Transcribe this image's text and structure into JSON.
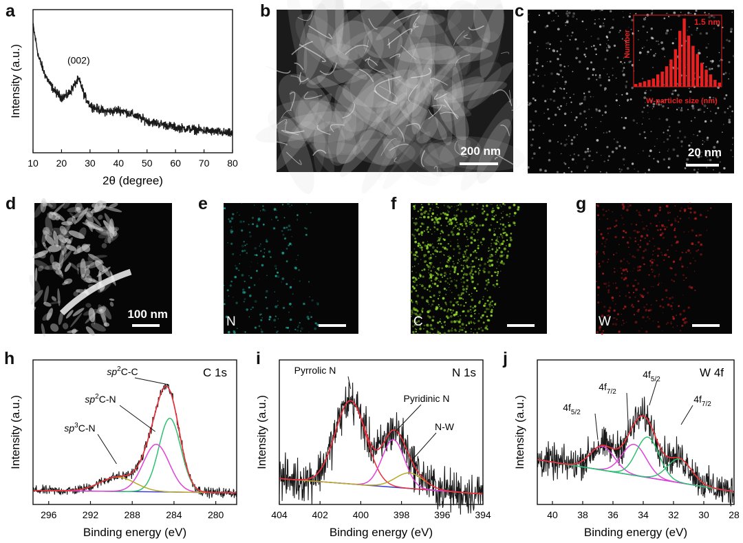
{
  "panels": {
    "a": {
      "letter": "a"
    },
    "b": {
      "letter": "b",
      "scalebar": "200 nm"
    },
    "c": {
      "letter": "c",
      "scalebar": "20 nm",
      "inset_ylabel": "Number",
      "inset_size": "1.5 nm",
      "inset_xlabel": "W-particle size (nm)"
    },
    "d": {
      "letter": "d",
      "scalebar": "100 nm"
    },
    "e": {
      "letter": "e",
      "element": "N"
    },
    "f": {
      "letter": "f",
      "element": "C"
    },
    "g": {
      "letter": "g",
      "element": "W"
    },
    "h": {
      "letter": "h"
    },
    "i": {
      "letter": "i"
    },
    "j": {
      "letter": "j"
    }
  },
  "colors": {
    "data": "#1a1a1a",
    "fit_envelope": "#e8303a",
    "component_green": "#2cc070",
    "component_magenta": "#e040d8",
    "component_olive": "#b8a826",
    "background": "#3a3ad8",
    "edx_N": "#22c8b4",
    "edx_C": "#8ed82a",
    "edx_W": "#c82020",
    "inset_red": "#e82020"
  },
  "chart_data": [
    {
      "id": "a",
      "type": "line",
      "xlabel": "2θ (degree)",
      "ylabel": "Intensity (a.u.)",
      "xlim": [
        10,
        80
      ],
      "xticks": [
        10,
        20,
        30,
        40,
        50,
        60,
        70,
        80
      ],
      "annotations": [
        {
          "text": "(002)",
          "x": 26
        }
      ],
      "series": [
        {
          "x": [
            10,
            12,
            14,
            16,
            18,
            20,
            22,
            24,
            25,
            26,
            27,
            28,
            30,
            32,
            35,
            38,
            40,
            42,
            45,
            50,
            55,
            60,
            65,
            70,
            75,
            80
          ],
          "y": [
            100,
            80,
            70,
            63,
            58,
            55,
            56,
            61,
            64,
            66,
            62,
            56,
            50,
            48,
            46,
            46,
            47,
            46,
            44,
            40,
            38,
            36,
            35,
            34,
            33,
            32
          ]
        }
      ]
    },
    {
      "id": "h",
      "type": "line",
      "title": "C 1s",
      "xlabel": "Binding energy (eV)",
      "ylabel": "Intensity (a.u.)",
      "xlim": [
        297.5,
        278
      ],
      "xticks": [
        296,
        292,
        288,
        284,
        280
      ],
      "annotations": [
        {
          "text": "sp²C-C",
          "x": 284.5
        },
        {
          "text": "sp²C-N",
          "x": 285.8
        },
        {
          "text": "sp³C-N",
          "x": 289.5
        }
      ],
      "peaks": [
        {
          "name": "sp²C-C",
          "center": 284.4,
          "height": 62,
          "width": 1.05,
          "color": "component_green"
        },
        {
          "name": "sp²C-N",
          "center": 285.7,
          "height": 40,
          "width": 1.25,
          "color": "component_magenta"
        },
        {
          "name": "sp³C-N",
          "center": 289.4,
          "height": 12,
          "width": 1.7,
          "color": "component_olive"
        }
      ],
      "background_line": {
        "left": 6,
        "right": 4
      },
      "noise": 2.0
    },
    {
      "id": "i",
      "type": "line",
      "title": "N 1s",
      "xlabel": "Binding energy (eV)",
      "ylabel": "Intensity (a.u.)",
      "xlim": [
        404,
        394
      ],
      "xticks": [
        404,
        402,
        400,
        398,
        396,
        394
      ],
      "annotations": [
        {
          "text": "Pyrrolic N",
          "x": 400.5
        },
        {
          "text": "Pyridinic N",
          "x": 398.3
        },
        {
          "text": "N-W",
          "x": 397.5
        }
      ],
      "peaks": [
        {
          "name": "Pyrrolic N",
          "center": 400.5,
          "height": 70,
          "width": 0.75,
          "color": "fit_envelope"
        },
        {
          "name": "Pyridinic N",
          "center": 398.4,
          "height": 40,
          "width": 0.55,
          "color": "component_magenta"
        },
        {
          "name": "N-W",
          "center": 397.6,
          "height": 13,
          "width": 0.7,
          "color": "component_olive"
        }
      ],
      "background_line": {
        "left": 16,
        "right": 3
      },
      "noise": 9.0
    },
    {
      "id": "j",
      "type": "line",
      "title": "W 4f",
      "xlabel": "Binding energy (eV)",
      "ylabel": "Intensity (a.u.)",
      "xlim": [
        41,
        28
      ],
      "xticks": [
        40,
        38,
        36,
        34,
        32,
        30,
        28
      ],
      "annotations": [
        {
          "text": "4f5/2",
          "x": 37
        },
        {
          "text": "4f7/2",
          "x": 35
        },
        {
          "text": "4f5/2",
          "x": 33.6
        },
        {
          "text": "4f7/2",
          "x": 31.5
        }
      ],
      "peaks": [
        {
          "name": "4f5/2",
          "center": 36.7,
          "height": 20,
          "width": 0.8,
          "color": "component_magenta"
        },
        {
          "name": "4f7/2",
          "center": 34.6,
          "height": 26,
          "width": 0.8,
          "color": "component_magenta"
        },
        {
          "name": "4f5/2",
          "center": 33.7,
          "height": 34,
          "width": 0.75,
          "color": "component_green"
        },
        {
          "name": "4f7/2",
          "center": 31.6,
          "height": 20,
          "width": 0.8,
          "color": "component_green"
        }
      ],
      "background_line": {
        "left": 32,
        "right": 5
      },
      "noise": 7.0
    },
    {
      "id": "c-inset",
      "type": "bar",
      "xlabel": "W-particle size (nm)",
      "ylabel": "Number",
      "annotation": "1.5 nm",
      "values": [
        4,
        6,
        8,
        10,
        12,
        18,
        22,
        30,
        40,
        55,
        82,
        100,
        75,
        60,
        48,
        35,
        25,
        18,
        10,
        6
      ]
    }
  ]
}
